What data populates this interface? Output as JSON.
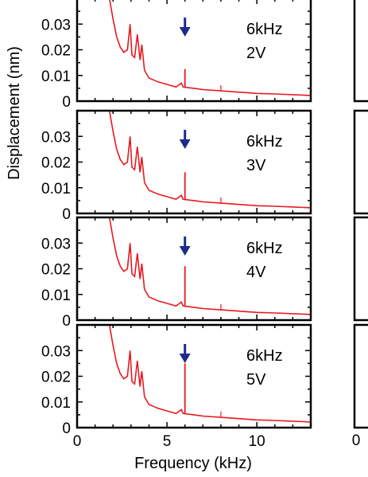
{
  "chart_data": {
    "type": "line",
    "ylabel": "Displacement (nm)",
    "xlabel": "Frequency (kHz)",
    "xlim": [
      0,
      13
    ],
    "ylim": [
      0,
      0.04
    ],
    "x_ticks": [
      "0",
      "5",
      "10"
    ],
    "y_ticks": [
      "0",
      "0.01",
      "0.02",
      "0.03"
    ],
    "line_color": "#e8191f",
    "arrow_color": "#1e2b8c",
    "panels": [
      {
        "freq_label": "6kHz",
        "volt_label": "2V",
        "arrow_x": 6.0,
        "peak_x": 6.0,
        "peak_y": 0.0125
      },
      {
        "freq_label": "6kHz",
        "volt_label": "3V",
        "arrow_x": 6.0,
        "peak_x": 6.0,
        "peak_y": 0.016
      },
      {
        "freq_label": "6kHz",
        "volt_label": "4V",
        "arrow_x": 6.0,
        "peak_x": 6.0,
        "peak_y": 0.021
      },
      {
        "freq_label": "6kHz",
        "volt_label": "5V",
        "arrow_x": 6.0,
        "peak_x": 6.0,
        "peak_y": 0.025
      }
    ],
    "series_points": [
      [
        1.6,
        0.045
      ],
      [
        1.8,
        0.04
      ],
      [
        2.0,
        0.032
      ],
      [
        2.2,
        0.025
      ],
      [
        2.4,
        0.021
      ],
      [
        2.6,
        0.019
      ],
      [
        2.8,
        0.02
      ],
      [
        2.95,
        0.03
      ],
      [
        3.05,
        0.018
      ],
      [
        3.2,
        0.017
      ],
      [
        3.35,
        0.026
      ],
      [
        3.5,
        0.016
      ],
      [
        3.6,
        0.022
      ],
      [
        3.75,
        0.012
      ],
      [
        4.0,
        0.009
      ],
      [
        4.5,
        0.0075
      ],
      [
        5.0,
        0.0065
      ],
      [
        5.5,
        0.0055
      ],
      [
        5.8,
        0.007
      ],
      [
        5.9,
        0.0055
      ],
      [
        6.5,
        0.005
      ],
      [
        7.0,
        0.0045
      ],
      [
        8.0,
        0.004
      ],
      [
        9.0,
        0.0035
      ],
      [
        10.0,
        0.003
      ],
      [
        11.0,
        0.0028
      ],
      [
        12.0,
        0.0025
      ],
      [
        13.0,
        0.0022
      ]
    ]
  }
}
